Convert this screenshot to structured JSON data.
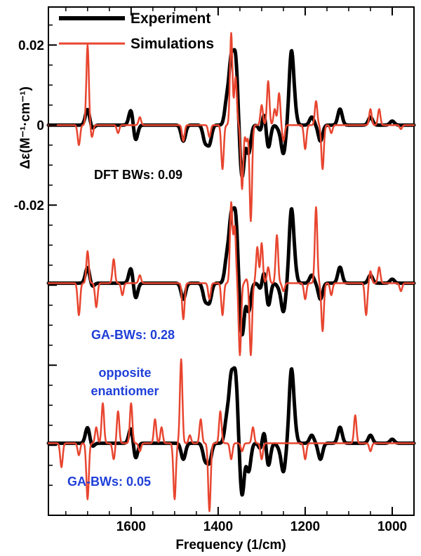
{
  "chart_data": {
    "type": "line",
    "title": "",
    "xlabel": "Frequency (1/cm)",
    "ylabel": "Δε(M⁻¹·cm⁻¹)",
    "xlim": [
      1790,
      950
    ],
    "ylim": [
      -0.0975,
      0.0295
    ],
    "x_ticks": [
      1600,
      1400,
      1200,
      1000
    ],
    "x_tick_labels": [
      "1600",
      "1400",
      "1200",
      "1000"
    ],
    "y_ticks": [
      0.02,
      0,
      -0.02
    ],
    "y_tick_labels": [
      "0.02",
      "0",
      "-0.02"
    ],
    "legend": {
      "position": "top-left",
      "entries": [
        {
          "label": "Experiment",
          "color": "#000000"
        },
        {
          "label": "Simulations",
          "color": "#e8452f"
        }
      ]
    },
    "panels": [
      {
        "name": "DFT BWs",
        "annotation": "DFT BWs: 0.09",
        "annotation_color": "#000000",
        "baseline": 0,
        "scale": 1,
        "experiment": [
          [
            1700,
            0.004
          ],
          [
            1690,
            -0.001
          ],
          [
            1600,
            0.004
          ],
          [
            1590,
            -0.004
          ],
          [
            1480,
            -0.004
          ],
          [
            1430,
            -0.004
          ],
          [
            1420,
            -0.0045
          ],
          [
            1380,
            0.006
          ],
          [
            1370,
            0.015
          ],
          [
            1360,
            0.016
          ],
          [
            1345,
            -0.013
          ],
          [
            1330,
            -0.007
          ],
          [
            1300,
            -0.003
          ],
          [
            1295,
            0.005
          ],
          [
            1285,
            -0.006
          ],
          [
            1260,
            -0.001
          ],
          [
            1250,
            -0.007
          ],
          [
            1232,
            0.017
          ],
          [
            1225,
            0.004
          ],
          [
            1185,
            0.002
          ],
          [
            1165,
            -0.004
          ],
          [
            1120,
            0.004
          ],
          [
            1050,
            0.002
          ],
          [
            1000,
            0.001
          ]
        ],
        "simulation": [
          [
            1720,
            -0.005
          ],
          [
            1700,
            0.02
          ],
          [
            1690,
            -0.003
          ],
          [
            1630,
            -0.002
          ],
          [
            1580,
            0.002
          ],
          [
            1480,
            -0.004
          ],
          [
            1420,
            -0.003
          ],
          [
            1390,
            -0.011
          ],
          [
            1370,
            0.023
          ],
          [
            1360,
            0.012
          ],
          [
            1345,
            -0.016
          ],
          [
            1335,
            -0.004
          ],
          [
            1325,
            -0.024
          ],
          [
            1300,
            0.005
          ],
          [
            1285,
            0.011
          ],
          [
            1270,
            0.004
          ],
          [
            1260,
            0.008
          ],
          [
            1250,
            -0.004
          ],
          [
            1200,
            -0.006
          ],
          [
            1175,
            0.006
          ],
          [
            1160,
            -0.011
          ],
          [
            1140,
            -0.002
          ],
          [
            1050,
            0.004
          ],
          [
            1030,
            0.004
          ],
          [
            980,
            -0.001
          ]
        ]
      },
      {
        "name": "GA-BWs",
        "annotation": "GA-BWs: 0.28",
        "annotation_color": "#1f3fd9",
        "baseline": -0.0395,
        "scale": 1,
        "experiment": [
          [
            1700,
            0.004
          ],
          [
            1690,
            -0.001
          ],
          [
            1600,
            0.004
          ],
          [
            1590,
            -0.004
          ],
          [
            1480,
            -0.004
          ],
          [
            1430,
            -0.004
          ],
          [
            1420,
            -0.0045
          ],
          [
            1380,
            0.006
          ],
          [
            1370,
            0.015
          ],
          [
            1360,
            0.016
          ],
          [
            1345,
            -0.013
          ],
          [
            1330,
            -0.007
          ],
          [
            1300,
            -0.003
          ],
          [
            1295,
            0.005
          ],
          [
            1285,
            -0.006
          ],
          [
            1260,
            -0.001
          ],
          [
            1250,
            -0.007
          ],
          [
            1232,
            0.017
          ],
          [
            1225,
            0.004
          ],
          [
            1185,
            0.002
          ],
          [
            1165,
            -0.004
          ],
          [
            1120,
            0.004
          ],
          [
            1050,
            0.002
          ],
          [
            1000,
            0.001
          ]
        ],
        "simulation": [
          [
            1720,
            -0.008
          ],
          [
            1700,
            0.008
          ],
          [
            1680,
            -0.006
          ],
          [
            1640,
            0.006
          ],
          [
            1620,
            -0.003
          ],
          [
            1580,
            0.002
          ],
          [
            1480,
            -0.009
          ],
          [
            1420,
            -0.004
          ],
          [
            1390,
            -0.008
          ],
          [
            1370,
            0.02
          ],
          [
            1362,
            0.014
          ],
          [
            1350,
            -0.018
          ],
          [
            1335,
            0.001
          ],
          [
            1325,
            -0.018
          ],
          [
            1310,
            0.009
          ],
          [
            1300,
            0.01
          ],
          [
            1285,
            0.004
          ],
          [
            1265,
            0.012
          ],
          [
            1250,
            -0.002
          ],
          [
            1200,
            -0.004
          ],
          [
            1175,
            0.019
          ],
          [
            1160,
            -0.012
          ],
          [
            1140,
            -0.003
          ],
          [
            1060,
            -0.008
          ],
          [
            1050,
            0.003
          ],
          [
            1030,
            0.004
          ],
          [
            980,
            -0.002
          ]
        ]
      },
      {
        "name": "opposite enantiomer",
        "annotation": "GA-BWs: 0.05",
        "annotation2": "opposite enantiomer",
        "annotation_color": "#1f3fd9",
        "baseline": -0.0795,
        "scale": 1,
        "experiment": [
          [
            1700,
            0.004
          ],
          [
            1690,
            -0.001
          ],
          [
            1600,
            0.004
          ],
          [
            1590,
            -0.004
          ],
          [
            1480,
            -0.004
          ],
          [
            1430,
            -0.004
          ],
          [
            1420,
            -0.0045
          ],
          [
            1380,
            0.006
          ],
          [
            1370,
            0.015
          ],
          [
            1360,
            0.016
          ],
          [
            1345,
            -0.013
          ],
          [
            1330,
            -0.007
          ],
          [
            1300,
            -0.003
          ],
          [
            1295,
            0.005
          ],
          [
            1285,
            -0.006
          ],
          [
            1260,
            -0.001
          ],
          [
            1250,
            -0.007
          ],
          [
            1232,
            0.017
          ],
          [
            1225,
            0.004
          ],
          [
            1185,
            0.002
          ],
          [
            1165,
            -0.004
          ],
          [
            1120,
            0.004
          ],
          [
            1050,
            0.002
          ],
          [
            1000,
            0.001
          ]
        ],
        "simulation": [
          [
            1760,
            -0.006
          ],
          [
            1720,
            -0.003
          ],
          [
            1700,
            -0.014
          ],
          [
            1680,
            0.004
          ],
          [
            1665,
            0.01
          ],
          [
            1640,
            -0.004
          ],
          [
            1630,
            0.008
          ],
          [
            1600,
            0.01
          ],
          [
            1580,
            -0.002
          ],
          [
            1545,
            0.006
          ],
          [
            1530,
            0.004
          ],
          [
            1500,
            -0.014
          ],
          [
            1485,
            0.021
          ],
          [
            1465,
            0.002
          ],
          [
            1440,
            0.006
          ],
          [
            1420,
            -0.017
          ],
          [
            1395,
            0.008
          ],
          [
            1370,
            -0.004
          ],
          [
            1345,
            -0.002
          ],
          [
            1320,
            0.004
          ],
          [
            1300,
            -0.004
          ],
          [
            1200,
            -0.004
          ],
          [
            1085,
            0.007
          ],
          [
            1050,
            -0.002
          ]
        ]
      }
    ]
  }
}
